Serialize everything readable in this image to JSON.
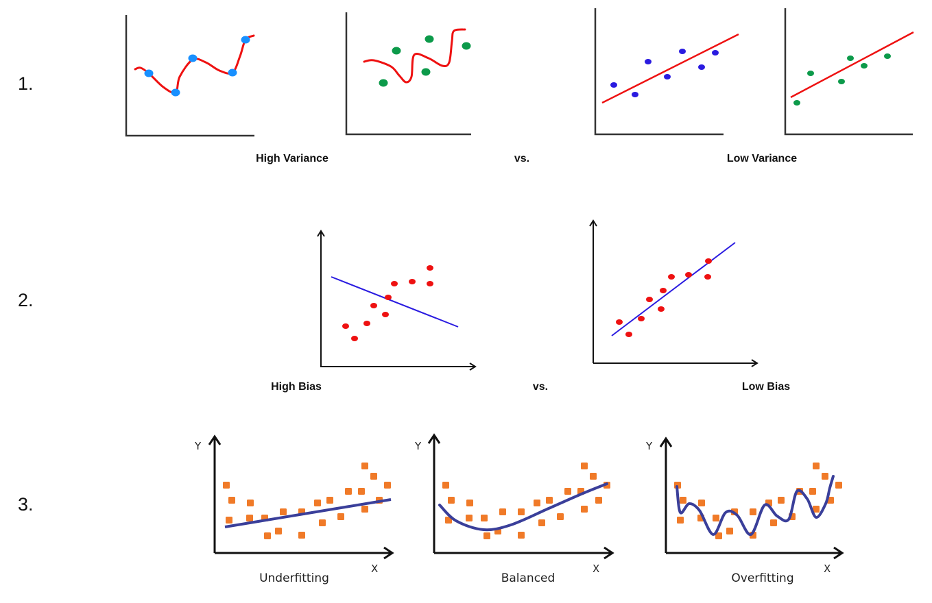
{
  "rows": [
    {
      "number": "1.",
      "left_label": "High Variance",
      "vs": "vs.",
      "right_label": "Low Variance"
    },
    {
      "number": "2.",
      "left_label": "High Bias",
      "vs": "vs.",
      "right_label": "Low Bias"
    },
    {
      "number": "3.",
      "panels": [
        {
          "caption": "Underfitting",
          "y_axis": "Y",
          "x_axis": "X"
        },
        {
          "caption": "Balanced",
          "y_axis": "Y",
          "x_axis": "X"
        },
        {
          "caption": "Overfitting",
          "y_axis": "Y",
          "x_axis": "X"
        }
      ]
    }
  ],
  "colors": {
    "fit_curve_red": "#ee1111",
    "fit_line_blue": "#2a1be0",
    "points_blue": "#1890ff",
    "points_green": "#0c9a4a",
    "points_purple_blue": "#2a1be0",
    "points_red": "#ee1111",
    "points_orange": "#f07a28",
    "fit_curve_navy": "#3a3f9a"
  }
}
